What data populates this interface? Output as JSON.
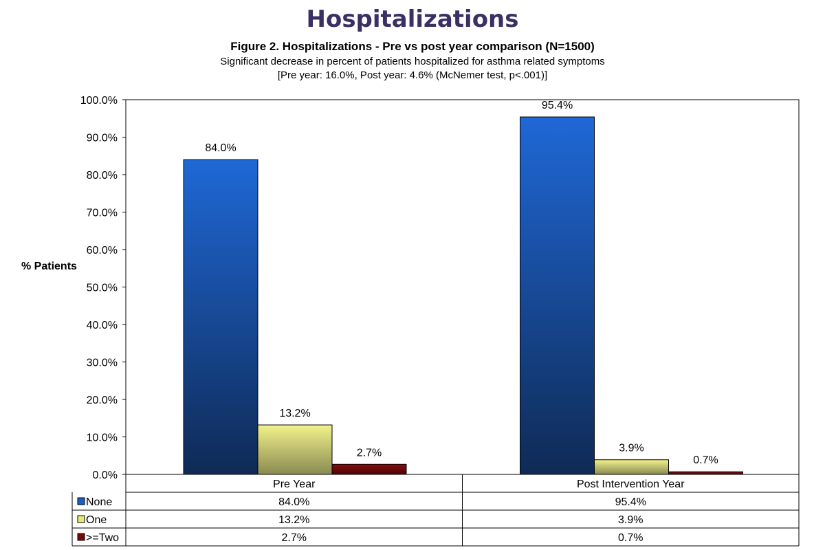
{
  "header": {
    "title": "Hospitalizations",
    "figure_title": "Figure 2. Hospitalizations - Pre vs post year comparison (N=1500)",
    "subtitle_line1": "Significant decrease in percent of patients hospitalized for asthma related symptoms",
    "subtitle_line2": "[Pre year: 16.0%, Post year: 4.6% (McNemer test, p<.001)]"
  },
  "chart_data": {
    "type": "bar",
    "title": "Figure 2. Hospitalizations - Pre vs post year comparison (N=1500)",
    "ylabel": "% Patients",
    "xlabel": "",
    "ylim": [
      0,
      100
    ],
    "y_ticks": [
      "0.0%",
      "10.0%",
      "20.0%",
      "30.0%",
      "40.0%",
      "50.0%",
      "60.0%",
      "70.0%",
      "80.0%",
      "90.0%",
      "100.0%"
    ],
    "categories": [
      "Pre Year",
      "Post Intervention Year"
    ],
    "series": [
      {
        "name": "None",
        "values": [
          84.0,
          95.4
        ],
        "labels": [
          "84.0%",
          "95.4%"
        ],
        "color": "#1a5fc4"
      },
      {
        "name": "One",
        "values": [
          13.2,
          3.9
        ],
        "labels": [
          "13.2%",
          "3.9%"
        ],
        "color": "#e6e67a"
      },
      {
        "name": ">=Two",
        "values": [
          2.7,
          0.7
        ],
        "labels": [
          "2.7%",
          "0.7%"
        ],
        "color": "#7a0a0a"
      }
    ],
    "legend": "data-table",
    "grid": false
  }
}
